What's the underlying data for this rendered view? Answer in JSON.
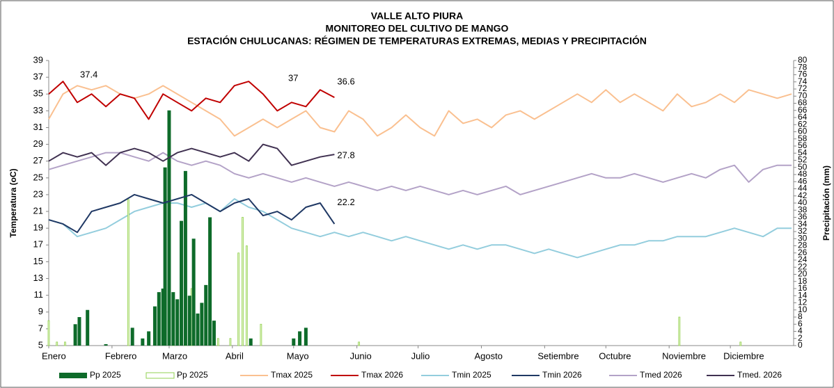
{
  "chart_data": {
    "type": "line",
    "title": [
      "VALLE  ALTO PIURA",
      "MONITOREO DEL CULTIVO DE MANGO",
      "ESTACIÓN CHULUCANAS: RÉGIMEN DE TEMPERATURAS EXTREMAS, MEDIAS Y PRECIPITACIÓN"
    ],
    "y_label": "Temperatura (oC)",
    "y2_label": "Precipitación (mm)",
    "grid": false,
    "xlim": [
      1,
      366
    ],
    "xticks": [
      {
        "value": 1,
        "label": "Enero"
      },
      {
        "value": 32,
        "label": "Febrero"
      },
      {
        "value": 60,
        "label": "Marzo"
      },
      {
        "value": 91,
        "label": "Abril"
      },
      {
        "value": 121,
        "label": "Mayo"
      },
      {
        "value": 152,
        "label": "Junio"
      },
      {
        "value": 182,
        "label": "Julio"
      },
      {
        "value": 213,
        "label": "Agosto"
      },
      {
        "value": 244,
        "label": "Setiembre"
      },
      {
        "value": 274,
        "label": "Octubre"
      },
      {
        "value": 305,
        "label": "Noviembre"
      },
      {
        "value": 335,
        "label": "Diciembre"
      }
    ],
    "ylim": [
      5,
      39
    ],
    "yticks": [
      5,
      7,
      9,
      11,
      13,
      15,
      17,
      19,
      21,
      23,
      25,
      27,
      29,
      31,
      33,
      35,
      37,
      39
    ],
    "y2lim": [
      0,
      80
    ],
    "y2ticks": [
      0,
      2,
      4,
      6,
      8,
      10,
      12,
      14,
      16,
      18,
      20,
      22,
      24,
      26,
      28,
      30,
      32,
      34,
      36,
      38,
      40,
      42,
      44,
      46,
      48,
      50,
      52,
      54,
      56,
      58,
      60,
      62,
      64,
      66,
      68,
      70,
      72,
      74,
      76,
      78,
      80
    ],
    "x": [
      1,
      8,
      15,
      22,
      29,
      36,
      43,
      50,
      57,
      64,
      71,
      78,
      85,
      92,
      99,
      106,
      113,
      120,
      127,
      134,
      141,
      148,
      155,
      162,
      169,
      176,
      183,
      190,
      197,
      204,
      211,
      218,
      225,
      232,
      239,
      246,
      253,
      260,
      267,
      274,
      281,
      288,
      295,
      302,
      309,
      316,
      323,
      330,
      337,
      344,
      351,
      358,
      365
    ],
    "series": [
      {
        "name": "Pp 2025",
        "type": "bar",
        "axis": "y2",
        "color": "#0e6b2a",
        "x": [
          14,
          16,
          20,
          29,
          42,
          47,
          50,
          53,
          55,
          57,
          58,
          60,
          62,
          64,
          66,
          68,
          70,
          72,
          74,
          76,
          78,
          80,
          82,
          100,
          121,
          124,
          127
        ],
        "values": [
          6,
          8,
          10,
          0.4,
          5,
          2,
          4,
          11,
          15,
          16,
          50,
          66,
          15,
          13,
          35,
          49,
          14,
          30,
          9,
          12,
          17,
          36,
          7,
          2,
          2,
          4,
          5
        ]
      },
      {
        "name": "Pp 2025",
        "type": "bar",
        "axis": "y2",
        "color": "#92d050",
        "x": [
          1,
          5,
          9,
          40,
          62,
          68,
          71,
          84,
          90,
          94,
          96,
          98,
          105,
          153,
          310,
          340
        ],
        "values": [
          7,
          1,
          1,
          41,
          4,
          3,
          16,
          2,
          2,
          26,
          36,
          28,
          6,
          1,
          8,
          1
        ]
      },
      {
        "name": "Tmax 2025",
        "color": "#fac090",
        "values": [
          32,
          35,
          36,
          35.5,
          36,
          35,
          34.5,
          35,
          36,
          35,
          34,
          33,
          32,
          30,
          31,
          32,
          31,
          32,
          33,
          31,
          30.5,
          33,
          32,
          30,
          31,
          32.5,
          31,
          30,
          33,
          31.5,
          32,
          31,
          32.5,
          33,
          32,
          33,
          34,
          35,
          34,
          35.5,
          34,
          35,
          34,
          33,
          35,
          33.5,
          34,
          35,
          34,
          35.5,
          35,
          34.5,
          35
        ]
      },
      {
        "name": "Tmax 2026",
        "color": "#c00000",
        "values": [
          35,
          36.5,
          34,
          35,
          33.5,
          35,
          34.5,
          32,
          35,
          34,
          33,
          34.5,
          34,
          36,
          36.5,
          35,
          33,
          34,
          33.5,
          35.5,
          34.6,
          null,
          null,
          null,
          null,
          null,
          null,
          null,
          null,
          null,
          null,
          null,
          null,
          null,
          null,
          null,
          null,
          null,
          null,
          null,
          null,
          null,
          null,
          null,
          null,
          null,
          null,
          null,
          null,
          null,
          null,
          null,
          null
        ]
      },
      {
        "name": "Tmin 2025",
        "color": "#93cddd",
        "values": [
          20,
          19.5,
          18,
          18.5,
          19,
          20,
          21,
          21.5,
          22,
          22,
          21.5,
          22,
          21,
          22.5,
          21.5,
          21,
          20,
          19,
          18.5,
          18,
          18.5,
          18,
          18.5,
          18,
          17.5,
          18,
          17.5,
          17,
          16.5,
          17,
          16.5,
          17,
          17,
          16.5,
          16,
          16.5,
          16,
          15.5,
          16,
          16.5,
          17,
          17,
          17.5,
          17.5,
          18,
          18,
          18,
          18.5,
          19,
          18.5,
          18,
          19,
          19
        ]
      },
      {
        "name": "Tmin 2026",
        "color": "#1f3864",
        "values": [
          20,
          19.5,
          18.5,
          21,
          21.5,
          22,
          23,
          22.5,
          22,
          22.5,
          23,
          22,
          21,
          22,
          22.5,
          20.5,
          21,
          20,
          21.5,
          22,
          19.5,
          null,
          null,
          null,
          null,
          null,
          null,
          null,
          null,
          null,
          null,
          null,
          null,
          null,
          null,
          null,
          null,
          null,
          null,
          null,
          null,
          null,
          null,
          null,
          null,
          null,
          null,
          null,
          null,
          null,
          null,
          null,
          null
        ]
      },
      {
        "name": "Tmed 2026",
        "color": "#b3a2c7",
        "values": [
          26,
          26.5,
          27,
          27.5,
          28,
          28,
          27.5,
          27,
          28,
          27,
          26.5,
          27,
          26.5,
          25.5,
          25,
          25.5,
          25,
          24.5,
          25,
          24.5,
          24,
          24.5,
          24,
          23.5,
          24,
          23.5,
          24,
          23.5,
          23,
          23.5,
          23,
          23.5,
          24,
          23,
          23.5,
          24,
          24.5,
          25,
          25.5,
          25,
          25,
          25.5,
          25,
          24.5,
          25,
          25.5,
          25,
          26,
          26.5,
          24.5,
          26,
          26.5,
          26.5
        ]
      },
      {
        "name": "Tmed. 2026",
        "color": "#403151",
        "values": [
          27,
          28,
          27.5,
          28,
          26.5,
          28,
          28.5,
          28,
          27,
          28,
          28.5,
          28,
          27.5,
          28,
          27,
          29,
          28.5,
          26.5,
          27,
          27.5,
          27.8,
          null,
          null,
          null,
          null,
          null,
          null,
          null,
          null,
          null,
          null,
          null,
          null,
          null,
          null,
          null,
          null,
          null,
          null,
          null,
          null,
          null,
          null,
          null,
          null,
          null,
          null,
          null,
          null,
          null,
          null,
          null,
          null
        ]
      }
    ],
    "annotations": [
      {
        "x": 15,
        "y": 37.4
      },
      {
        "x": 117,
        "y": 37
      },
      {
        "x": 141,
        "y": 36.6
      },
      {
        "x": 141,
        "y": 27.8
      },
      {
        "x": 141,
        "y": 22.2
      }
    ]
  }
}
